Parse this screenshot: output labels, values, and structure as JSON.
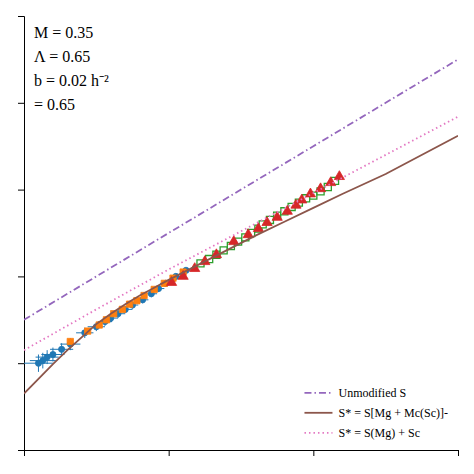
{
  "chart_data": {
    "type": "scatter",
    "annotations": [
      {
        "text": "M = 0.35"
      },
      {
        "text": "Λ = 0.65"
      },
      {
        "text": "b = 0.02 h⁻²"
      },
      {
        "text": "= 0.65"
      }
    ],
    "xlim": [
      43,
      46
    ],
    "ylim": [
      42,
      47
    ],
    "xticks": [
      43,
      44,
      45,
      46
    ],
    "yticks": [
      42,
      43,
      44,
      45,
      46,
      47
    ],
    "tick_labels": false,
    "legend": "lower right",
    "series": [
      {
        "type": "scatter",
        "marker": "circle",
        "x": [
          43.1,
          43.13,
          43.16,
          43.2,
          43.26,
          43.32,
          43.42,
          43.5,
          43.56,
          43.6,
          43.65,
          43.7,
          43.75,
          43.82,
          43.88,
          43.93,
          43.98,
          44.05,
          44.12,
          44.48
        ],
        "values": [
          43.0,
          43.03,
          43.07,
          43.1,
          43.16,
          43.22,
          43.35,
          43.42,
          43.48,
          43.52,
          43.57,
          43.62,
          43.67,
          43.73,
          43.8,
          43.86,
          43.92,
          44.0,
          44.07,
          44.4
        ],
        "x_error": [
          0.1,
          0.09,
          0.08,
          0.08,
          0.08,
          0.07,
          0.06,
          0.06,
          0.05,
          0.05,
          0.05,
          0.05,
          0.04,
          0.04,
          0.04,
          0.04,
          0.04,
          0.03,
          0.03,
          0.03
        ],
        "error": [
          0.1,
          0.09,
          0.08,
          0.08,
          0.07,
          0.07,
          0.06,
          0.05,
          0.05,
          0.05,
          0.05,
          0.04,
          0.04,
          0.04,
          0.04,
          0.04,
          0.04,
          0.03,
          0.03,
          0.03
        ]
      },
      {
        "type": "scatter",
        "marker": "square",
        "x": [
          43.32,
          43.44,
          43.52,
          43.57,
          43.62,
          43.68,
          43.73,
          43.78,
          43.83,
          43.9,
          43.97,
          44.03,
          44.1
        ],
        "values": [
          43.25,
          43.37,
          43.44,
          43.5,
          43.57,
          43.62,
          43.68,
          43.72,
          43.78,
          43.85,
          43.92,
          43.98,
          44.05
        ]
      },
      {
        "type": "scatter",
        "marker": "open-square",
        "x": [
          44.22,
          44.28,
          44.33,
          44.38,
          44.43,
          44.48,
          44.53,
          44.57,
          44.62,
          44.65,
          44.7,
          44.75,
          44.8,
          44.85,
          44.9,
          44.95,
          45.0,
          45.05,
          45.1,
          45.15
        ],
        "values": [
          44.15,
          44.2,
          44.25,
          44.3,
          44.35,
          44.4,
          44.45,
          44.5,
          44.55,
          44.6,
          44.65,
          44.7,
          44.75,
          44.8,
          44.85,
          44.9,
          44.93,
          44.98,
          45.03,
          45.1
        ]
      },
      {
        "type": "scatter",
        "marker": "triangle",
        "x": [
          44.02,
          44.1,
          44.18,
          44.25,
          44.33,
          44.45,
          44.55,
          44.62,
          44.68,
          44.75,
          44.82,
          44.88,
          44.92,
          44.98,
          45.05,
          45.12,
          45.18
        ],
        "values": [
          43.93,
          44.0,
          44.09,
          44.17,
          44.25,
          44.4,
          44.48,
          44.55,
          44.62,
          44.68,
          44.75,
          44.82,
          44.88,
          44.95,
          45.01,
          45.08,
          45.15
        ]
      },
      {
        "name": "Unmodified S",
        "type": "line",
        "line_style": "dashdot",
        "x": [
          43.0,
          43.5,
          44.0,
          44.5,
          45.0,
          45.5,
          46.0
        ],
        "values": [
          43.5,
          44.0,
          44.5,
          45.0,
          45.5,
          46.0,
          46.5
        ]
      },
      {
        "name": "S* = S[Mg + Mc(Sc)]-",
        "type": "line",
        "line_style": "solid",
        "x": [
          43.0,
          43.1,
          43.2,
          43.3,
          43.4,
          43.5,
          43.6,
          43.7,
          43.8,
          43.9,
          44.0,
          44.2,
          44.4,
          44.6,
          44.8,
          45.0,
          45.2,
          45.5,
          46.0
        ],
        "values": [
          42.65,
          42.82,
          42.99,
          43.15,
          43.3,
          43.45,
          43.57,
          43.68,
          43.78,
          43.87,
          43.96,
          44.13,
          44.3,
          44.47,
          44.63,
          44.79,
          44.95,
          45.18,
          45.62
        ]
      },
      {
        "name": "S* = S(Mg) + Sc",
        "type": "line",
        "line_style": "dotted",
        "x": [
          43.0,
          43.5,
          44.0,
          44.5,
          45.0,
          45.5,
          46.0
        ],
        "values": [
          43.15,
          43.62,
          44.08,
          44.52,
          44.96,
          45.4,
          45.84
        ]
      }
    ]
  }
}
